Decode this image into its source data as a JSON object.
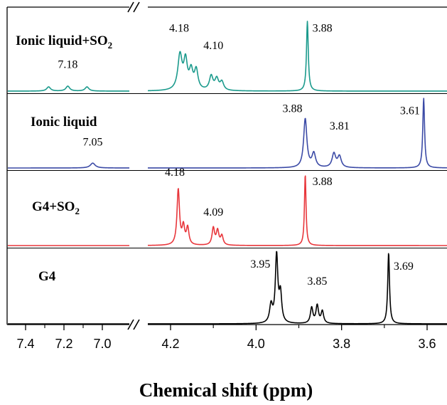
{
  "chart_data": {
    "type": "line",
    "title": "",
    "xlabel": "Chemical shift (ppm)",
    "ylabel": "",
    "x_axis_reversed": true,
    "axis_break": [
      6.85,
      4.27
    ],
    "segments": [
      {
        "xlim": [
          7.5,
          6.85
        ],
        "ticks": [
          7.4,
          7.2,
          7.0
        ],
        "tick_labels": [
          "7.4",
          "7.2",
          "7.0"
        ]
      },
      {
        "xlim": [
          4.27,
          3.52
        ],
        "ticks": [
          4.2,
          4.0,
          3.8,
          3.6
        ],
        "tick_labels": [
          "4.2",
          "4.0",
          "3.8",
          "3.6"
        ]
      }
    ],
    "minor_ticks": [
      7.3,
      7.1,
      4.1,
      3.9,
      3.7
    ],
    "grid": false,
    "series": [
      {
        "name": "Ionic liquid+SO2",
        "label_main": "Ionic liquid+SO",
        "label_sub": "2",
        "color": "#1a9a8c",
        "peaks": [
          {
            "ppm": 7.28,
            "h": 0.06,
            "w": 0.012
          },
          {
            "ppm": 7.18,
            "h": 0.07,
            "w": 0.012
          },
          {
            "ppm": 7.08,
            "h": 0.06,
            "w": 0.012
          },
          {
            "ppm": 4.178,
            "h": 0.5,
            "w": 0.006
          },
          {
            "ppm": 4.165,
            "h": 0.4,
            "w": 0.005
          },
          {
            "ppm": 4.152,
            "h": 0.26,
            "w": 0.005
          },
          {
            "ppm": 4.14,
            "h": 0.28,
            "w": 0.005
          },
          {
            "ppm": 4.105,
            "h": 0.2,
            "w": 0.005
          },
          {
            "ppm": 4.092,
            "h": 0.16,
            "w": 0.005
          },
          {
            "ppm": 4.08,
            "h": 0.12,
            "w": 0.005
          },
          {
            "ppm": 3.88,
            "h": 1.0,
            "w": 0.0025
          }
        ],
        "peak_labels": [
          {
            "text": "7.18",
            "ppm": 7.18,
            "y": 0.33
          },
          {
            "text": "4.18",
            "ppm": 4.18,
            "y": 0.85
          },
          {
            "text": "4.10",
            "ppm": 4.1,
            "y": 0.6
          },
          {
            "text": "3.88",
            "ppm": 3.845,
            "y": 0.85
          }
        ]
      },
      {
        "name": "Ionic liquid",
        "label_main": "Ionic liquid",
        "label_sub": "",
        "color": "#3b4aa6",
        "peaks": [
          {
            "ppm": 7.05,
            "h": 0.07,
            "w": 0.015
          },
          {
            "ppm": 3.885,
            "h": 0.7,
            "w": 0.0045
          },
          {
            "ppm": 3.865,
            "h": 0.2,
            "w": 0.005
          },
          {
            "ppm": 3.818,
            "h": 0.2,
            "w": 0.005
          },
          {
            "ppm": 3.805,
            "h": 0.16,
            "w": 0.005
          },
          {
            "ppm": 3.608,
            "h": 1.0,
            "w": 0.0025
          }
        ],
        "peak_labels": [
          {
            "text": "7.05",
            "ppm": 7.05,
            "y": 0.32
          },
          {
            "text": "3.88",
            "ppm": 3.915,
            "y": 0.8
          },
          {
            "text": "3.81",
            "ppm": 3.805,
            "y": 0.55
          },
          {
            "text": "3.61",
            "ppm": 3.64,
            "y": 0.77
          }
        ]
      },
      {
        "name": "G4+SO2",
        "label_main": "G4+SO",
        "label_sub": "2",
        "color": "#e8363b",
        "peaks": [
          {
            "ppm": 4.182,
            "h": 0.78,
            "w": 0.0035
          },
          {
            "ppm": 4.17,
            "h": 0.25,
            "w": 0.0035
          },
          {
            "ppm": 4.16,
            "h": 0.24,
            "w": 0.0035
          },
          {
            "ppm": 4.1,
            "h": 0.24,
            "w": 0.0035
          },
          {
            "ppm": 4.09,
            "h": 0.2,
            "w": 0.0035
          },
          {
            "ppm": 4.08,
            "h": 0.13,
            "w": 0.0035
          },
          {
            "ppm": 3.885,
            "h": 1.0,
            "w": 0.0022
          }
        ],
        "peak_labels": [
          {
            "text": "4.18",
            "ppm": 4.19,
            "y": 0.98
          },
          {
            "text": "4.09",
            "ppm": 4.1,
            "y": 0.42
          },
          {
            "text": "3.88",
            "ppm": 3.845,
            "y": 0.85
          }
        ]
      },
      {
        "name": "G4",
        "label_main": "G4",
        "label_sub": "",
        "color": "#000000",
        "peaks": [
          {
            "ppm": 3.965,
            "h": 0.25,
            "w": 0.004
          },
          {
            "ppm": 3.952,
            "h": 0.95,
            "w": 0.0035
          },
          {
            "ppm": 3.943,
            "h": 0.4,
            "w": 0.0035
          },
          {
            "ppm": 3.87,
            "h": 0.22,
            "w": 0.0035
          },
          {
            "ppm": 3.857,
            "h": 0.25,
            "w": 0.0035
          },
          {
            "ppm": 3.845,
            "h": 0.17,
            "w": 0.0035
          },
          {
            "ppm": 3.69,
            "h": 1.0,
            "w": 0.0025
          }
        ],
        "peak_labels": [
          {
            "text": "3.95",
            "ppm": 3.99,
            "y": 0.79
          },
          {
            "text": "3.85",
            "ppm": 3.857,
            "y": 0.55
          },
          {
            "text": "3.69",
            "ppm": 3.655,
            "y": 0.76
          }
        ]
      }
    ]
  }
}
